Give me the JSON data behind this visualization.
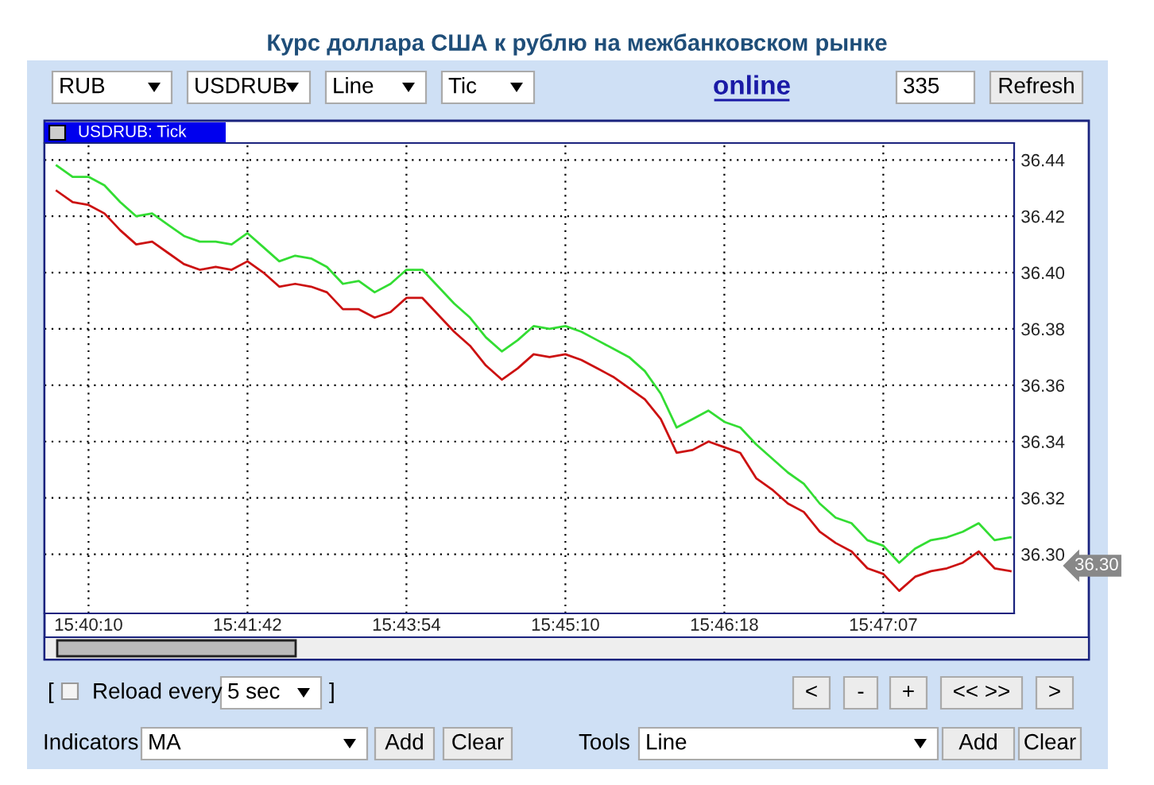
{
  "chart_data": {
    "type": "line",
    "title": "Курс доллара США к рублю на межбанковском рынке",
    "subtitle": "USDRUB: Tick",
    "categories": [
      null,
      null,
      "15:40:10",
      null,
      null,
      null,
      null,
      null,
      null,
      null,
      null,
      null,
      "15:41:42",
      null,
      null,
      null,
      null,
      null,
      null,
      null,
      null,
      null,
      "15:43:54",
      null,
      null,
      null,
      null,
      null,
      null,
      null,
      null,
      null,
      "15:45:10",
      null,
      null,
      null,
      null,
      null,
      null,
      null,
      null,
      null,
      "15:46:18",
      null,
      null,
      null,
      null,
      null,
      null,
      null,
      null,
      null,
      "15:47:07",
      null,
      null,
      null,
      null,
      null,
      null,
      null,
      null
    ],
    "series": [
      {
        "color": "#33dd33",
        "values": [
          36.438,
          36.434,
          36.434,
          36.431,
          36.425,
          36.42,
          36.421,
          36.417,
          36.413,
          36.411,
          36.411,
          36.41,
          36.414,
          36.409,
          36.404,
          36.406,
          36.405,
          36.402,
          36.396,
          36.397,
          36.393,
          36.396,
          36.401,
          36.401,
          36.395,
          36.389,
          36.384,
          36.377,
          36.372,
          36.376,
          36.381,
          36.38,
          36.381,
          36.379,
          36.376,
          36.373,
          36.37,
          36.365,
          36.357,
          36.345,
          36.348,
          36.351,
          36.347,
          36.345,
          36.339,
          36.334,
          36.329,
          36.325,
          36.318,
          36.313,
          36.311,
          36.305,
          36.303,
          36.297,
          36.302,
          36.305,
          36.306,
          36.308,
          36.311,
          36.305,
          36.306
        ]
      },
      {
        "color": "#cc1111",
        "values": [
          36.429,
          36.425,
          36.424,
          36.421,
          36.415,
          36.41,
          36.411,
          36.407,
          36.403,
          36.401,
          36.402,
          36.401,
          36.404,
          36.4,
          36.395,
          36.396,
          36.395,
          36.393,
          36.387,
          36.387,
          36.384,
          36.386,
          36.391,
          36.391,
          36.385,
          36.379,
          36.374,
          36.367,
          36.362,
          36.366,
          36.371,
          36.37,
          36.371,
          36.369,
          36.366,
          36.363,
          36.359,
          36.355,
          36.348,
          36.336,
          36.337,
          36.34,
          36.338,
          36.336,
          36.327,
          36.323,
          36.318,
          36.315,
          36.308,
          36.304,
          36.301,
          36.295,
          36.293,
          36.287,
          36.292,
          36.294,
          36.295,
          36.297,
          36.301,
          36.295,
          36.294
        ]
      }
    ],
    "ylim": [
      36.279,
      36.446
    ],
    "yticks": [
      {
        "value": 36.3,
        "label": "36.30"
      },
      {
        "value": 36.32,
        "label": "36.32"
      },
      {
        "value": 36.34,
        "label": "36.34"
      },
      {
        "value": 36.36,
        "label": "36.36"
      },
      {
        "value": 36.38,
        "label": "36.38"
      },
      {
        "value": 36.4,
        "label": "36.40"
      },
      {
        "value": 36.42,
        "label": "36.42"
      },
      {
        "value": 36.44,
        "label": "36.44"
      }
    ],
    "grid": true,
    "line_style": "solid",
    "annotations": [
      "36.30",
      "RUB",
      "USDRUB",
      "Line",
      "Tic",
      "online",
      "335",
      "Refresh",
      "[",
      "Reload every",
      "5 sec",
      "]",
      "<",
      "-",
      "+",
      "<< >>",
      ">",
      "Indicators",
      "MA",
      "Add",
      "Clear",
      "Tools",
      "Line",
      "Add",
      "Clear"
    ]
  }
}
